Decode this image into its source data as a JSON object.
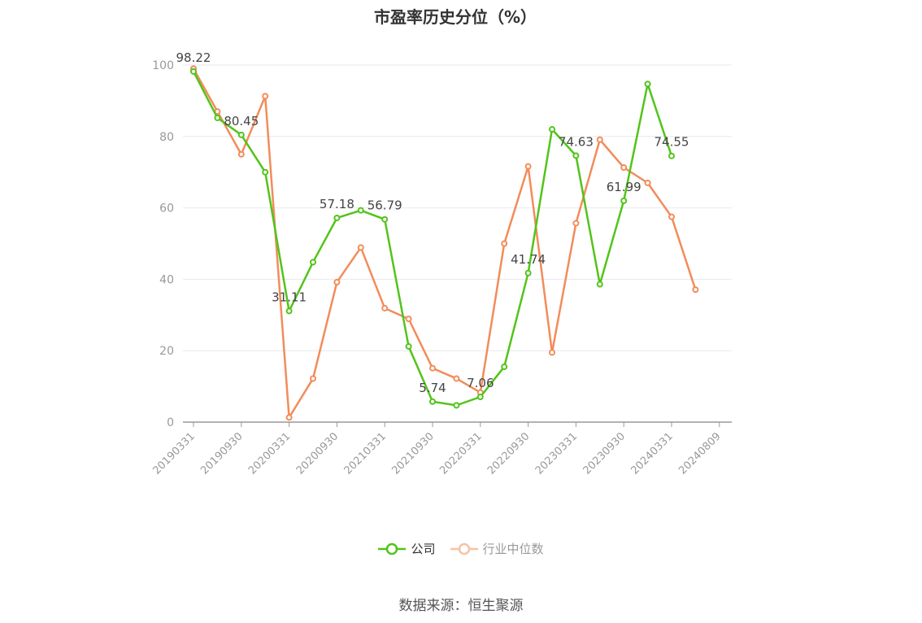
{
  "chart_data": {
    "type": "line",
    "title": "市盈率历史分位（%）",
    "ylim": [
      0,
      100
    ],
    "yticks": [
      0,
      20,
      40,
      60,
      80,
      100
    ],
    "x_tick_labels": [
      "20190331",
      "20190930",
      "20200331",
      "20200930",
      "20210331",
      "20210930",
      "20220331",
      "20220930",
      "20230331",
      "20230930",
      "20240331",
      "20240809"
    ],
    "grid": true,
    "legend_position": "bottom",
    "series": [
      {
        "name": "公司",
        "color": "#52c41a",
        "values": [
          98.22,
          85.2,
          80.45,
          70.0,
          31.11,
          44.8,
          57.18,
          59.3,
          56.79,
          21.2,
          5.74,
          4.7,
          7.06,
          15.5,
          41.74,
          82.0,
          74.63,
          38.6,
          61.99,
          94.7,
          74.55
        ],
        "labels": {
          "0": "98.22",
          "2": "80.45",
          "4": "31.11",
          "6": "57.18",
          "8": "56.79",
          "10": "5.74",
          "12": "7.06",
          "14": "41.74",
          "16": "74.63",
          "18": "61.99",
          "20": "74.55"
        }
      },
      {
        "name": "行业中位数",
        "color": "#f28c5a",
        "values": [
          99.0,
          87.0,
          75.0,
          91.3,
          1.3,
          12.2,
          39.2,
          48.9,
          31.9,
          28.9,
          15.1,
          12.2,
          8.3,
          50.0,
          71.6,
          19.5,
          55.7,
          79.1,
          71.3,
          67.0,
          57.5,
          37.1
        ]
      }
    ],
    "source": "数据来源：恒生聚源"
  }
}
